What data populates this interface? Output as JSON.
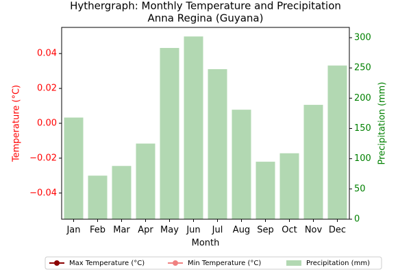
{
  "chart_data": {
    "type": "bar",
    "title": "Hythergraph: Monthly Temperature and Precipitation",
    "subtitle": "Anna Regina (Guyana)",
    "x_label": "Month",
    "y_label": "Temperature (°C)",
    "y2_label": "Precipitation (mm)",
    "y_color": "red",
    "y2_color": "green",
    "categories": [
      "Jan",
      "Feb",
      "Mar",
      "Apr",
      "May",
      "Jun",
      "Jul",
      "Aug",
      "Sep",
      "Oct",
      "Nov",
      "Dec"
    ],
    "series": [
      {
        "name": "Max Temperature (°C)",
        "type": "line",
        "marker": true,
        "color": "#8b0000",
        "values": [
          null,
          null,
          null,
          null,
          null,
          null,
          null,
          null,
          null,
          null,
          null,
          null
        ]
      },
      {
        "name": "Min Temperature (°C)",
        "type": "line",
        "marker": true,
        "color": "#f08080",
        "values": [
          null,
          null,
          null,
          null,
          null,
          null,
          null,
          null,
          null,
          null,
          null,
          null
        ]
      },
      {
        "name": "Precipitation (mm)",
        "type": "bar",
        "axis": "y2",
        "color": "#b2d8b2",
        "values": [
          168,
          72,
          88,
          125,
          283,
          302,
          248,
          181,
          95,
          109,
          189,
          254
        ]
      }
    ],
    "ylim": [
      -0.055,
      0.055
    ],
    "yticks": [
      {
        "value": -0.04,
        "label": "−0.04"
      },
      {
        "value": -0.02,
        "label": "−0.02"
      },
      {
        "value": 0,
        "label": "0.00"
      },
      {
        "value": 0.02,
        "label": "0.02"
      },
      {
        "value": 0.04,
        "label": "0.04"
      }
    ],
    "y2lim": [
      0,
      317
    ],
    "y2ticks": [
      0,
      50,
      100,
      150,
      200,
      250,
      300
    ],
    "legend": "bottom"
  }
}
